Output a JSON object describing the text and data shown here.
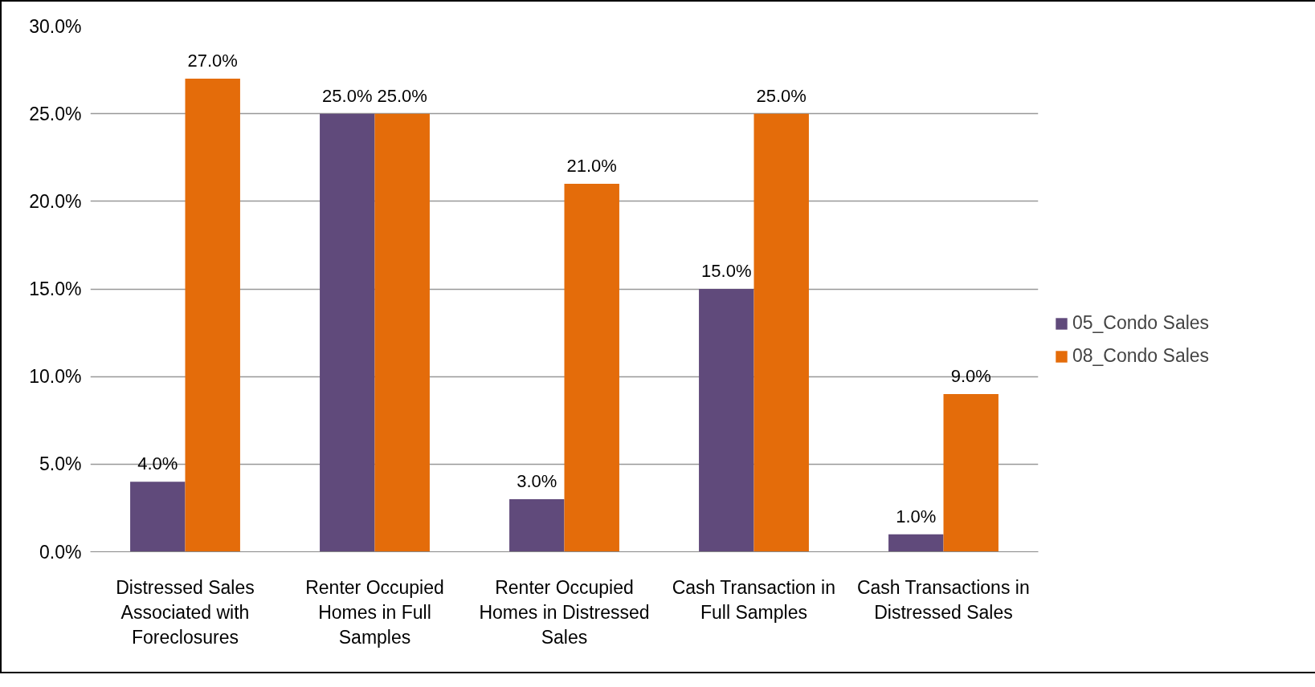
{
  "chart_data": {
    "type": "bar",
    "categories": [
      "Distressed Sales Associated with Foreclosures",
      "Renter Occupied Homes in Full Samples",
      "Renter Occupied Homes in Distressed Sales",
      "Cash Transaction in Full Samples",
      "Cash Transactions in Distressed Sales"
    ],
    "series": [
      {
        "name": "05_Condo Sales",
        "color": "#604a7b",
        "values": [
          4,
          25,
          3,
          15,
          1
        ],
        "value_labels": [
          "4.0%",
          "25.0%",
          "3.0%",
          "15.0%",
          "1.0%"
        ]
      },
      {
        "name": "08_Condo Sales",
        "color": "#e46c0a",
        "values": [
          27,
          25,
          21,
          25,
          9
        ],
        "value_labels": [
          "27.0%",
          "25.0%",
          "21.0%",
          "25.0%",
          "9.0%"
        ]
      }
    ],
    "ylim": [
      0,
      30
    ],
    "yticks": [
      {
        "value": 0,
        "label": "0.0%"
      },
      {
        "value": 5,
        "label": "5.0%"
      },
      {
        "value": 10,
        "label": "10.0%"
      },
      {
        "value": 15,
        "label": "15.0%"
      },
      {
        "value": 20,
        "label": "20.0%"
      },
      {
        "value": 25,
        "label": "25.0%"
      },
      {
        "value": 30,
        "label": "30.0%"
      }
    ],
    "grid": "y",
    "legend": "right"
  }
}
